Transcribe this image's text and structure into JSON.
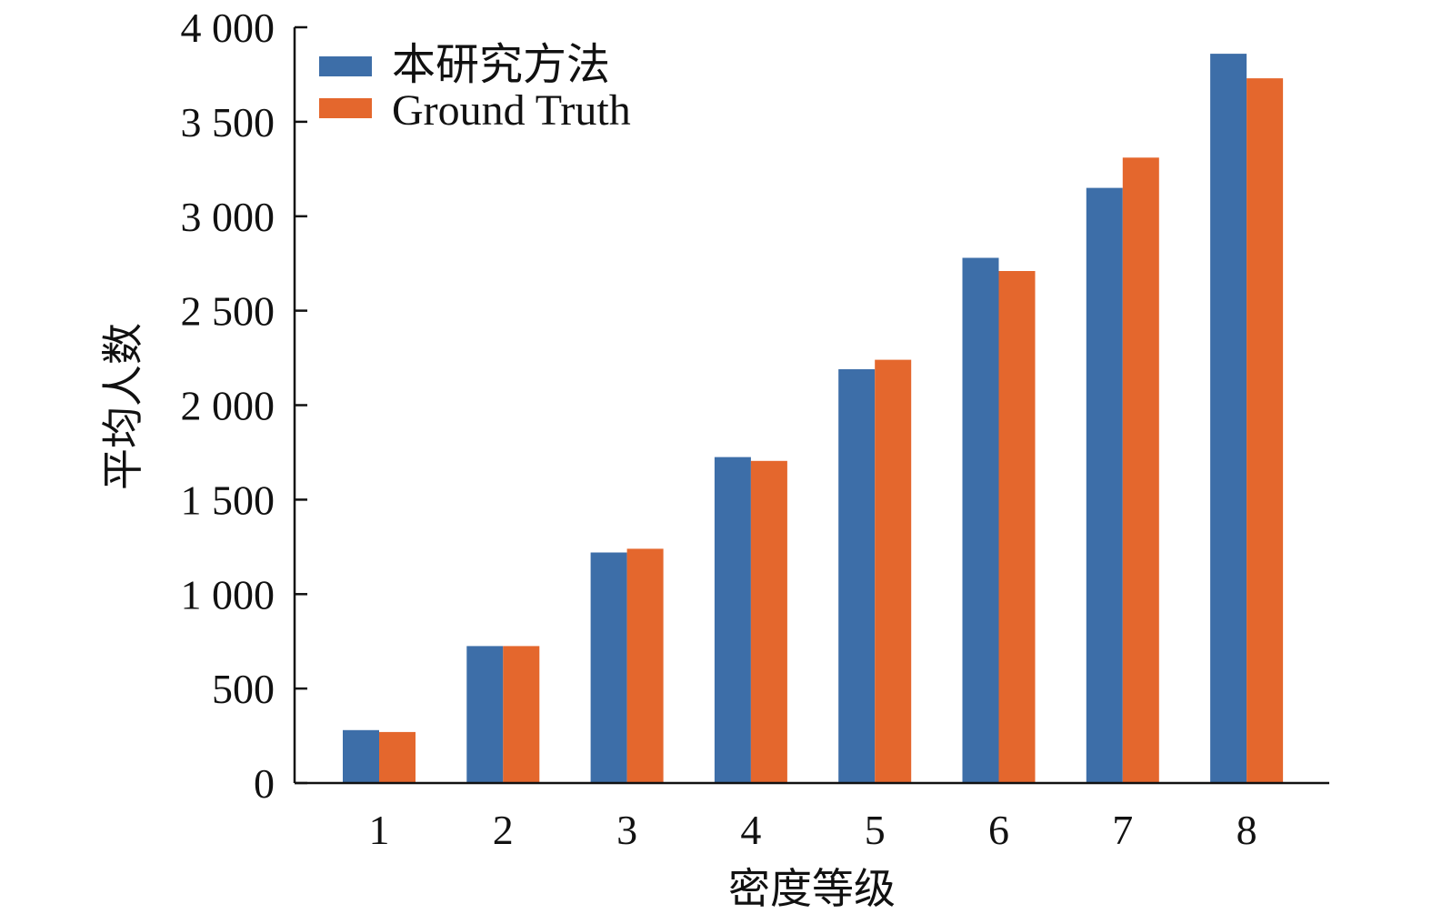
{
  "chart_data": {
    "type": "bar",
    "title": "",
    "xlabel": "密度等级",
    "ylabel": "平均人数",
    "categories": [
      "1",
      "2",
      "3",
      "4",
      "5",
      "6",
      "7",
      "8"
    ],
    "series": [
      {
        "name": "本研究方法",
        "color": "#3d6ea8",
        "values": [
          280,
          725,
          1220,
          1725,
          2190,
          2780,
          3150,
          3860
        ]
      },
      {
        "name": "Ground Truth",
        "color": "#e4672d",
        "values": [
          270,
          725,
          1240,
          1705,
          2240,
          2710,
          3310,
          3730
        ]
      }
    ],
    "ylim": [
      0,
      4000
    ],
    "yticks": [
      0,
      500,
      1000,
      1500,
      2000,
      2500,
      3000,
      3500,
      4000
    ],
    "ytick_labels": [
      "0",
      "500",
      "1 000",
      "1 500",
      "2 000",
      "2 500",
      "3 000",
      "3 500",
      "4 000"
    ],
    "grid": false,
    "legend_position": "top-left"
  }
}
